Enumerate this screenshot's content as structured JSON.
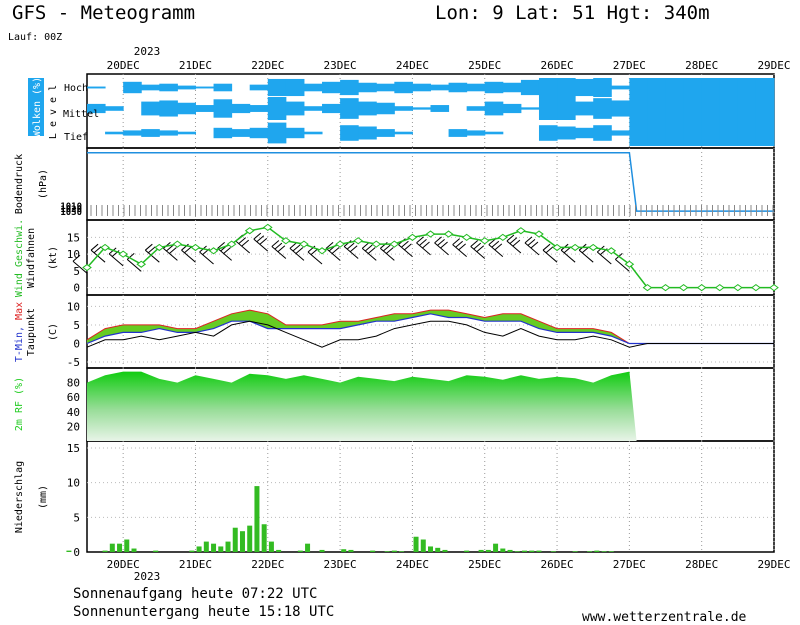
{
  "header": {
    "title": "GFS - Meteogramm",
    "location": "Lon: 9 Lat: 51 Hgt: 340m",
    "run": "Lauf: 00Z"
  },
  "footer": {
    "sunrise": "Sonnenaufgang heute 07:22 UTC",
    "sunset": "Sonnenuntergang heute 15:18 UTC",
    "source": "www.wetterzentrale.de"
  },
  "time_axis": {
    "labels": [
      "20DEC",
      "21DEC",
      "22DEC",
      "23DEC",
      "24DEC",
      "25DEC",
      "26DEC",
      "27DEC",
      "28DEC",
      "29DEC"
    ],
    "year": "2023",
    "start_day": 19.5
  },
  "colors": {
    "cloud": "#1fa6ee",
    "wind": "#22bb22",
    "tmin": "#2233cc",
    "tmax": "#dd2222",
    "pressure": "#1f8fdf",
    "rh": "#22cc22",
    "precip": "#33bb22"
  },
  "chart_data": [
    {
      "type": "area",
      "title": "Wolken (%)",
      "ylabel": "L e v e l",
      "levels": [
        "Hoch",
        "Mittel",
        "Tief"
      ],
      "legend_label": "Wolken (%)",
      "series": [
        {
          "name": "Hoch",
          "x": [
            19.5,
            19.75,
            20,
            20.25,
            20.5,
            20.75,
            21,
            21.25,
            21.5,
            21.75,
            22,
            22.25,
            22.5,
            22.75,
            23,
            23.25,
            23.5,
            23.75,
            24,
            24.25,
            24.5,
            24.75,
            25,
            25.25,
            25.5,
            25.75,
            26,
            26.25,
            26.5,
            26.75,
            27,
            27.25,
            27.5,
            27.75,
            28,
            28.25,
            28.5,
            28.75,
            29
          ],
          "values": [
            10,
            0,
            60,
            30,
            40,
            20,
            10,
            40,
            0,
            30,
            90,
            90,
            40,
            60,
            80,
            50,
            40,
            60,
            40,
            30,
            50,
            40,
            60,
            50,
            80,
            100,
            100,
            90,
            100,
            20,
            100,
            100,
            100,
            100,
            100,
            100,
            100,
            100,
            100
          ]
        },
        {
          "name": "Mittel",
          "x": [
            19.5,
            19.75,
            20,
            20.25,
            20.5,
            20.75,
            21,
            21.25,
            21.5,
            21.75,
            22,
            22.25,
            22.5,
            22.75,
            23,
            23.25,
            23.5,
            23.75,
            24,
            24.25,
            24.5,
            24.75,
            25,
            25.25,
            25.5,
            25.75,
            26,
            26.25,
            26.5,
            26.75,
            27,
            27.25,
            27.5,
            27.75,
            28,
            28.25,
            28.5,
            28.75,
            29
          ],
          "values": [
            40,
            20,
            0,
            60,
            70,
            50,
            30,
            80,
            40,
            30,
            100,
            60,
            20,
            40,
            90,
            60,
            50,
            20,
            10,
            30,
            0,
            20,
            60,
            40,
            10,
            100,
            100,
            60,
            90,
            70,
            100,
            100,
            100,
            100,
            100,
            100,
            100,
            100,
            100
          ]
        },
        {
          "name": "Tief",
          "x": [
            19.5,
            19.75,
            20,
            20.25,
            20.5,
            20.75,
            21,
            21.25,
            21.5,
            21.75,
            22,
            22.25,
            22.5,
            22.75,
            23,
            23.25,
            23.5,
            23.75,
            24,
            24.25,
            24.5,
            24.75,
            25,
            25.25,
            25.5,
            25.75,
            26,
            26.25,
            26.5,
            26.75,
            27,
            27.25,
            27.5,
            27.75,
            28,
            28.25,
            28.5,
            28.75,
            29
          ],
          "values": [
            0,
            10,
            20,
            30,
            20,
            10,
            0,
            40,
            30,
            40,
            80,
            40,
            10,
            0,
            60,
            50,
            30,
            10,
            0,
            0,
            30,
            20,
            10,
            0,
            0,
            60,
            50,
            40,
            60,
            20,
            100,
            100,
            100,
            100,
            100,
            100,
            100,
            100,
            100
          ]
        }
      ]
    },
    {
      "type": "line",
      "title": "Bodendruck",
      "ylabel": "(hPa)",
      "ylim": [
        0,
        1040
      ],
      "y_tick_labels": [
        "1010",
        "1020",
        "1030"
      ],
      "x": [
        19.5,
        20,
        20.5,
        21,
        21.5,
        22,
        22.5,
        23,
        23.5,
        24,
        24.5,
        25,
        25.5,
        26,
        26.5,
        27,
        27.1,
        27.5,
        28,
        28.5,
        29
      ],
      "values": [
        1028,
        1028,
        1028,
        1028,
        1028,
        1027,
        1027,
        1027,
        1027,
        1027,
        1027,
        1027,
        1027,
        1028,
        1028,
        1028,
        80,
        80,
        80,
        80,
        80
      ]
    },
    {
      "type": "line",
      "title": "Wind Geschwi.",
      "ylabel": "(kt)",
      "secondary_label": "Windfahnen",
      "ylim": [
        -1,
        19
      ],
      "yticks": [
        0,
        5,
        10,
        15
      ],
      "x": [
        19.5,
        19.75,
        20,
        20.25,
        20.5,
        20.75,
        21,
        21.25,
        21.5,
        21.75,
        22,
        22.25,
        22.5,
        22.75,
        23,
        23.25,
        23.5,
        23.75,
        24,
        24.25,
        24.5,
        24.75,
        25,
        25.25,
        25.5,
        25.75,
        26,
        26.25,
        26.5,
        26.75,
        27,
        27.25,
        27.5,
        27.75,
        28,
        28.25,
        28.5,
        28.75,
        29
      ],
      "values": [
        6,
        12,
        10,
        7,
        12,
        13,
        12,
        11,
        13,
        17,
        18,
        14,
        13,
        11,
        13,
        14,
        13,
        13,
        15,
        16,
        16,
        15,
        14,
        15,
        17,
        16,
        12,
        12,
        12,
        11,
        7,
        0,
        0,
        0,
        0,
        0,
        0,
        0,
        0
      ]
    },
    {
      "type": "line",
      "title": "T-Min, Max",
      "ylabel": "(C)",
      "secondary_label": "Taupunkt",
      "ylim": [
        -5,
        12
      ],
      "yticks": [
        -5,
        0,
        5,
        10
      ],
      "x": [
        19.5,
        19.75,
        20,
        20.25,
        20.5,
        20.75,
        21,
        21.25,
        21.5,
        21.75,
        22,
        22.25,
        22.5,
        22.75,
        23,
        23.25,
        23.5,
        23.75,
        24,
        24.25,
        24.5,
        24.75,
        25,
        25.25,
        25.5,
        25.75,
        26,
        26.25,
        26.5,
        26.75,
        27,
        27.25,
        27.5,
        27.75,
        28,
        28.25,
        28.5,
        28.75,
        29
      ],
      "series": [
        {
          "name": "T-Min",
          "values": [
            0,
            2,
            3,
            3,
            4,
            3,
            3,
            4,
            6,
            6,
            4,
            4,
            4,
            4,
            4,
            5,
            6,
            6,
            7,
            8,
            7,
            7,
            6,
            6,
            6,
            4,
            3,
            3,
            3,
            2,
            0,
            0,
            0,
            0,
            0,
            0,
            0,
            0,
            0
          ]
        },
        {
          "name": "Max",
          "values": [
            1,
            4,
            5,
            5,
            5,
            4,
            4,
            6,
            8,
            9,
            8,
            5,
            5,
            5,
            6,
            6,
            7,
            8,
            8,
            9,
            9,
            8,
            7,
            8,
            8,
            6,
            4,
            4,
            4,
            3,
            0,
            0,
            0,
            0,
            0,
            0,
            0,
            0,
            0
          ]
        },
        {
          "name": "Taupunkt",
          "values": [
            -1,
            1,
            1,
            2,
            1,
            2,
            3,
            2,
            5,
            6,
            5,
            3,
            1,
            -1,
            1,
            1,
            2,
            4,
            5,
            6,
            6,
            5,
            3,
            2,
            4,
            2,
            1,
            1,
            2,
            1,
            -1,
            0,
            0,
            0,
            0,
            0,
            0,
            0,
            0
          ]
        }
      ]
    },
    {
      "type": "area",
      "title": "2m RF (%)",
      "ylim": [
        0,
        100
      ],
      "yticks": [
        20,
        40,
        60,
        80
      ],
      "x": [
        19.5,
        19.75,
        20,
        20.25,
        20.5,
        20.75,
        21,
        21.25,
        21.5,
        21.75,
        22,
        22.25,
        22.5,
        22.75,
        23,
        23.25,
        23.5,
        23.75,
        24,
        24.25,
        24.5,
        24.75,
        25,
        25.25,
        25.5,
        25.75,
        26,
        26.25,
        26.5,
        26.75,
        27,
        27.1
      ],
      "values": [
        80,
        90,
        95,
        95,
        85,
        80,
        90,
        85,
        80,
        92,
        90,
        85,
        90,
        85,
        80,
        88,
        85,
        82,
        88,
        85,
        82,
        90,
        88,
        84,
        90,
        85,
        88,
        86,
        80,
        90,
        95,
        0
      ]
    },
    {
      "type": "bar",
      "title": "Niederschlag",
      "ylabel": "(mm)",
      "ylim": [
        0,
        16
      ],
      "yticks": [
        0,
        5,
        10,
        15
      ],
      "x": [
        19.25,
        19.75,
        19.85,
        19.95,
        20.05,
        20.15,
        20.45,
        20.95,
        21.05,
        21.15,
        21.25,
        21.35,
        21.45,
        21.55,
        21.65,
        21.75,
        21.85,
        21.95,
        22.05,
        22.15,
        22.45,
        22.55,
        22.75,
        23.05,
        23.15,
        23.45,
        23.65,
        23.75,
        23.85,
        24.05,
        24.15,
        24.25,
        24.35,
        24.45,
        24.75,
        24.95,
        25.05,
        25.15,
        25.25,
        25.35,
        25.45,
        25.55,
        25.65,
        25.75,
        25.95,
        26.25,
        26.45,
        26.55,
        26.65,
        26.75
      ],
      "values": [
        0.2,
        0.2,
        1.2,
        1.2,
        1.8,
        0.5,
        0.2,
        0.2,
        0.8,
        1.5,
        1.2,
        0.8,
        1.5,
        3.5,
        3.0,
        3.8,
        9.5,
        4.0,
        1.5,
        0.3,
        0.2,
        1.2,
        0.3,
        0.4,
        0.3,
        0.2,
        0.1,
        0.2,
        0.1,
        2.2,
        1.8,
        0.8,
        0.6,
        0.3,
        0.2,
        0.3,
        0.3,
        1.2,
        0.5,
        0.3,
        0.1,
        0.2,
        0.2,
        0.2,
        0.1,
        0.1,
        0.1,
        0.2,
        0.1,
        0.1
      ]
    }
  ]
}
